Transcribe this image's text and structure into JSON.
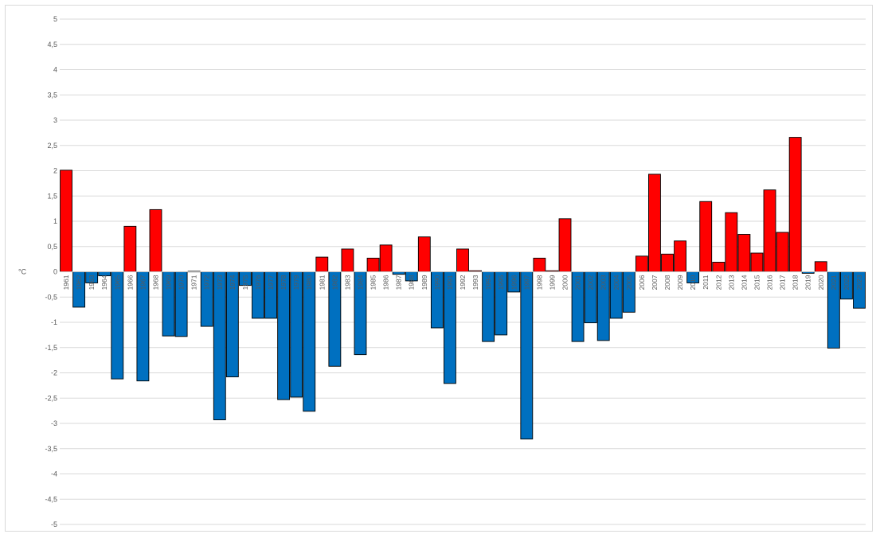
{
  "chart_data": {
    "type": "bar",
    "ylabel": "°C",
    "ylim": [
      -5,
      5
    ],
    "ytick_step": 0.5,
    "ytick_labels": [
      "5",
      "4,5",
      "4",
      "3,5",
      "3",
      "2,5",
      "2",
      "1,5",
      "1",
      "0,5",
      "0",
      "-0,5",
      "-1",
      "-1,5",
      "-2",
      "-2,5",
      "-3",
      "-3,5",
      "-4",
      "-4,5",
      "-5"
    ],
    "grid": true,
    "legend": "none",
    "colors": {
      "positive": "#ff0000",
      "negative": "#0070c0",
      "edge": "#000000",
      "grid": "#d9d9d9"
    },
    "categories": [
      "1961",
      "1962",
      "1963",
      "1964",
      "1965",
      "1966",
      "1967",
      "1968",
      "1969",
      "1970",
      "1971",
      "1972",
      "1973",
      "1974",
      "1975",
      "1976",
      "1977",
      "1978",
      "1979",
      "1980",
      "1981",
      "1982",
      "1983",
      "1984",
      "1985",
      "1986",
      "1987",
      "1988",
      "1989",
      "1990",
      "1991",
      "1992",
      "1993",
      "1994",
      "1995",
      "1996",
      "1997",
      "1998",
      "1999",
      "2000",
      "2001",
      "2002",
      "2003",
      "2004",
      "2005",
      "2006",
      "2007",
      "2008",
      "2009",
      "2010",
      "2011",
      "2012",
      "2013",
      "2014",
      "2015",
      "2016",
      "2017",
      "2018",
      "2019",
      "2020",
      "2021",
      "2022",
      "2023"
    ],
    "values": [
      2.01,
      -0.7,
      -0.22,
      -0.08,
      -2.12,
      0.9,
      -2.16,
      1.23,
      -1.27,
      -1.28,
      0.01,
      -1.08,
      -2.93,
      -2.08,
      -0.27,
      -0.92,
      -0.92,
      -2.53,
      -2.48,
      -2.76,
      0.29,
      -1.87,
      0.45,
      -1.64,
      0.27,
      0.53,
      -0.05,
      -0.18,
      0.69,
      -1.11,
      -2.21,
      0.45,
      0.02,
      -1.38,
      -1.25,
      -0.4,
      -3.31,
      0.27,
      0.02,
      1.05,
      -1.38,
      -1.01,
      -1.36,
      -0.92,
      -0.8,
      0.31,
      1.93,
      0.35,
      0.61,
      -0.22,
      1.39,
      0.19,
      1.17,
      0.74,
      0.37,
      1.62,
      0.78,
      2.66,
      -0.03,
      0.2,
      -1.51,
      -0.54,
      -0.72
    ],
    "shown_x_labels": [
      "1961",
      "1962",
      "1963",
      "1964",
      "1965",
      "1966",
      "1967",
      "1968",
      "1969",
      "1970",
      "1971",
      "1972",
      "1973",
      "1974",
      "1975",
      "1976",
      "1977",
      "1978",
      "1979",
      "1980",
      "1981",
      "1982",
      "1983",
      "1984",
      "1985",
      "1986",
      "1987",
      "1988",
      "1989",
      "1990",
      "1991",
      "1992",
      "1993",
      "1994",
      "1995",
      "1996",
      "1997",
      "1998",
      "1999",
      "2000",
      "2001",
      "2002",
      "2003",
      "2004",
      "2005",
      "2006",
      "2007",
      "2008",
      "2009",
      "2010",
      "2011",
      "2012",
      "2013",
      "2014",
      "2015",
      "2016",
      "2017",
      "2018",
      "2019",
      "2020",
      "2021",
      "2022",
      "2023"
    ]
  }
}
